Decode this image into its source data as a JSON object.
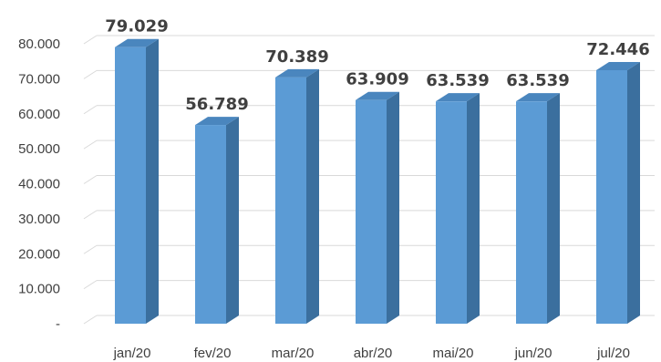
{
  "chart_data": {
    "type": "bar",
    "style": "3d-column",
    "categories": [
      "jan/20",
      "fev/20",
      "mar/20",
      "abr/20",
      "mai/20",
      "jun/20",
      "jul/20"
    ],
    "values": [
      79029,
      56789,
      70389,
      63909,
      63539,
      63539,
      72446
    ],
    "value_labels": [
      "79.029",
      "56.789",
      "70.389",
      "63.909",
      "63.539",
      "63.539",
      "72.446"
    ],
    "ylim": [
      0,
      80000
    ],
    "yticks": [
      0,
      10000,
      20000,
      30000,
      40000,
      50000,
      60000,
      70000,
      80000
    ],
    "ytick_labels": [
      "-",
      "10.000",
      "20.000",
      "30.000",
      "40.000",
      "50.000",
      "60.000",
      "70.000",
      "80.000"
    ],
    "title": "",
    "xlabel": "",
    "ylabel": "",
    "grid": true,
    "legend": "none",
    "colors": {
      "bar_front": "#5b9bd5",
      "bar_side": "#3b6f9e",
      "bar_top": "#4a86be",
      "grid": "#d9d9d9",
      "text": "#404040"
    }
  }
}
